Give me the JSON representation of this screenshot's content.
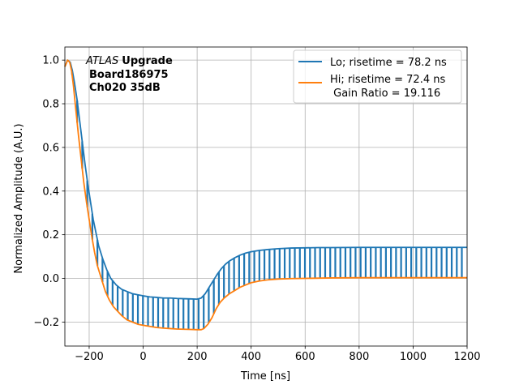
{
  "chart_data": {
    "type": "line",
    "title": "",
    "xlabel": "Time [ns]",
    "ylabel": "Normalized Amplitude (A.U.)",
    "xlim": [
      -290,
      1200
    ],
    "ylim": [
      -0.31,
      1.06
    ],
    "x_ticks": [
      -200,
      0,
      200,
      400,
      600,
      800,
      1000,
      1200
    ],
    "x_tick_labels": [
      "−200",
      "0",
      "200",
      "400",
      "600",
      "800",
      "1000",
      "1200"
    ],
    "y_ticks": [
      -0.2,
      0.0,
      0.2,
      0.4,
      0.6,
      0.8,
      1.0
    ],
    "y_tick_labels": [
      "−0.2",
      "0.0",
      "0.2",
      "0.4",
      "0.6",
      "0.8",
      "1.0"
    ],
    "grid": true,
    "legend_position": "top-right",
    "annotation": {
      "italic": "ATLAS",
      "bold": "Upgrade",
      "line2": "Board186975",
      "line3": "Ch020 35dB"
    },
    "series": [
      {
        "name": "Lo; risetime = 78.2 ns",
        "legend_label": "Lo; risetime = 78.2 ns",
        "color": "#1f77b4",
        "x": [
          -290,
          -280,
          -270,
          -262,
          -255,
          -245,
          -235,
          -225,
          -215,
          -205,
          -195,
          -185,
          -175,
          -165,
          -150,
          -135,
          -120,
          -100,
          -80,
          -60,
          -40,
          -20,
          0,
          25,
          50,
          75,
          100,
          125,
          150,
          175,
          200,
          215,
          230,
          245,
          260,
          275,
          290,
          305,
          320,
          340,
          360,
          380,
          400,
          430,
          460,
          500,
          550,
          600,
          650,
          700,
          800,
          900,
          1000,
          1100,
          1200
        ],
        "y": [
          0.97,
          1.0,
          0.99,
          0.95,
          0.9,
          0.82,
          0.72,
          0.62,
          0.52,
          0.43,
          0.35,
          0.27,
          0.21,
          0.15,
          0.09,
          0.04,
          0.0,
          -0.03,
          -0.05,
          -0.06,
          -0.07,
          -0.075,
          -0.08,
          -0.085,
          -0.087,
          -0.09,
          -0.09,
          -0.092,
          -0.093,
          -0.094,
          -0.095,
          -0.09,
          -0.07,
          -0.04,
          -0.01,
          0.02,
          0.045,
          0.065,
          0.08,
          0.095,
          0.107,
          0.116,
          0.122,
          0.128,
          0.132,
          0.136,
          0.139,
          0.14,
          0.141,
          0.141,
          0.142,
          0.142,
          0.142,
          0.142,
          0.142
        ]
      },
      {
        "name": "Hi; risetime = 72.4 ns",
        "legend_label": "Hi; risetime = 72.4 ns",
        "legend_label_2": " Gain Ratio = 19.116",
        "color": "#ff7f0e",
        "x": [
          -290,
          -280,
          -272,
          -265,
          -258,
          -250,
          -240,
          -230,
          -220,
          -210,
          -200,
          -190,
          -180,
          -170,
          -160,
          -150,
          -140,
          -125,
          -110,
          -95,
          -80,
          -60,
          -40,
          -20,
          0,
          25,
          50,
          75,
          100,
          125,
          150,
          175,
          200,
          215,
          225,
          240,
          255,
          270,
          285,
          300,
          320,
          340,
          360,
          380,
          400,
          430,
          460,
          500,
          550,
          600,
          700,
          800,
          900,
          1000,
          1100,
          1200
        ],
        "y": [
          0.97,
          1.0,
          0.99,
          0.95,
          0.88,
          0.78,
          0.66,
          0.55,
          0.44,
          0.35,
          0.27,
          0.19,
          0.12,
          0.06,
          0.02,
          -0.02,
          -0.06,
          -0.1,
          -0.13,
          -0.15,
          -0.17,
          -0.19,
          -0.2,
          -0.21,
          -0.215,
          -0.22,
          -0.225,
          -0.228,
          -0.23,
          -0.232,
          -0.233,
          -0.234,
          -0.235,
          -0.235,
          -0.23,
          -0.21,
          -0.18,
          -0.14,
          -0.11,
          -0.09,
          -0.07,
          -0.055,
          -0.04,
          -0.03,
          -0.02,
          -0.012,
          -0.007,
          -0.003,
          -0.001,
          0.0,
          0.002,
          0.003,
          0.003,
          0.003,
          0.003,
          0.003
        ]
      }
    ]
  }
}
